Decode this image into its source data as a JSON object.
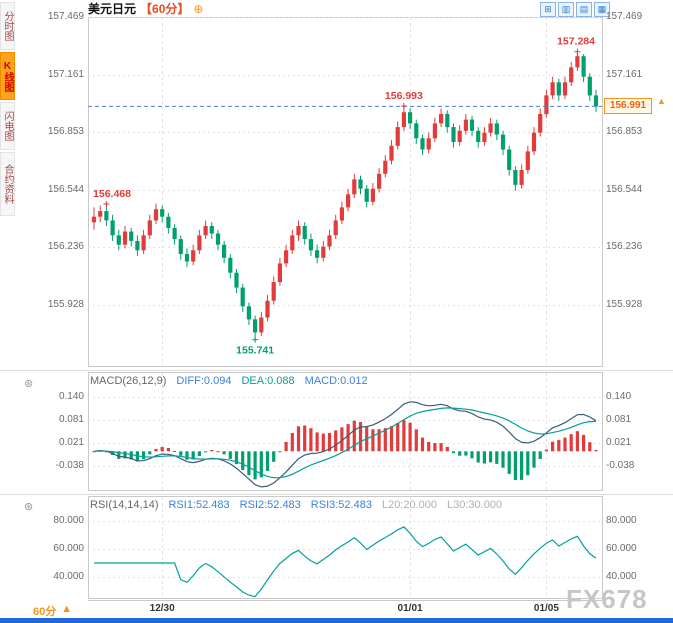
{
  "header": {
    "symbol": "美元日元",
    "period": "【60分】",
    "settings_glyph": "⊕"
  },
  "sidebar": {
    "tabs": [
      {
        "label": "分时图",
        "active": false
      },
      {
        "label": "K线图",
        "active": true
      },
      {
        "label": "闪电图",
        "active": false
      },
      {
        "label": "合约资料",
        "active": false
      }
    ]
  },
  "toolbar": {
    "icons": [
      {
        "name": "compare-icon",
        "glyph": "⊞"
      },
      {
        "name": "grid-layout-icon",
        "glyph": "▥"
      },
      {
        "name": "kline-style-icon",
        "glyph": "▤"
      },
      {
        "name": "indicator-panel-icon",
        "glyph": "▦"
      }
    ]
  },
  "price_tag": {
    "value": "156.991",
    "color": "#f7941d"
  },
  "bottom": {
    "period_label": "60分",
    "arrow": "▲"
  },
  "watermark": "FX678",
  "chart_data": [
    {
      "type": "candlestick",
      "title": "美元日元 60分",
      "y_ticks": [
        "157.469",
        "157.161",
        "156.853",
        "156.544",
        "156.236",
        "155.928"
      ],
      "y_range": [
        155.6,
        157.47
      ],
      "x_ticks": [
        {
          "label": "12/30",
          "index": 11
        },
        {
          "label": "01/01",
          "index": 51
        },
        {
          "label": "01/05",
          "index": 73
        }
      ],
      "annotations": [
        {
          "text": "156.468",
          "index": 2,
          "price": 156.468,
          "placement": "above",
          "color": "#e23b3b"
        },
        {
          "text": "155.741",
          "index": 26,
          "price": 155.741,
          "placement": "below",
          "color": "#00a06c"
        },
        {
          "text": "156.993",
          "index": 50,
          "price": 156.993,
          "placement": "above",
          "color": "#e23b3b"
        },
        {
          "text": "157.284",
          "index": 78,
          "price": 157.284,
          "placement": "above",
          "color": "#e23b3b"
        }
      ],
      "last_price": 156.991,
      "up_color": "#e23b3b",
      "down_color": "#00a06c",
      "candles": [
        [
          156.37,
          156.45,
          156.33,
          156.4
        ],
        [
          156.4,
          156.46,
          156.37,
          156.43
        ],
        [
          156.43,
          156.468,
          156.35,
          156.38
        ],
        [
          156.38,
          156.41,
          156.27,
          156.3
        ],
        [
          156.3,
          156.33,
          156.22,
          156.25
        ],
        [
          156.25,
          156.35,
          156.23,
          156.32
        ],
        [
          156.32,
          156.34,
          156.24,
          156.27
        ],
        [
          156.27,
          156.3,
          156.19,
          156.22
        ],
        [
          156.22,
          156.33,
          156.2,
          156.3
        ],
        [
          156.3,
          156.41,
          156.28,
          156.38
        ],
        [
          156.38,
          156.47,
          156.36,
          156.44
        ],
        [
          156.44,
          156.46,
          156.37,
          156.4
        ],
        [
          156.4,
          156.42,
          156.31,
          156.34
        ],
        [
          156.34,
          156.36,
          156.25,
          156.28
        ],
        [
          156.28,
          156.3,
          156.17,
          156.2
        ],
        [
          156.2,
          156.23,
          156.13,
          156.16
        ],
        [
          156.16,
          156.25,
          156.14,
          156.22
        ],
        [
          156.22,
          156.33,
          156.2,
          156.3
        ],
        [
          156.3,
          156.38,
          156.28,
          156.35
        ],
        [
          156.35,
          156.37,
          156.28,
          156.31
        ],
        [
          156.31,
          156.33,
          156.22,
          156.25
        ],
        [
          156.25,
          156.27,
          156.15,
          156.18
        ],
        [
          156.18,
          156.2,
          156.07,
          156.1
        ],
        [
          156.1,
          156.12,
          155.99,
          156.02
        ],
        [
          156.02,
          156.04,
          155.89,
          155.92
        ],
        [
          155.92,
          155.94,
          155.82,
          155.85
        ],
        [
          155.85,
          155.87,
          155.741,
          155.78
        ],
        [
          155.78,
          155.89,
          155.76,
          155.86
        ],
        [
          155.86,
          155.98,
          155.84,
          155.95
        ],
        [
          155.95,
          156.08,
          155.93,
          156.05
        ],
        [
          156.05,
          156.18,
          156.03,
          156.15
        ],
        [
          156.15,
          156.25,
          156.13,
          156.22
        ],
        [
          156.22,
          156.33,
          156.2,
          156.3
        ],
        [
          156.3,
          156.38,
          156.27,
          156.35
        ],
        [
          156.35,
          156.37,
          156.25,
          156.28
        ],
        [
          156.28,
          156.31,
          156.19,
          156.22
        ],
        [
          156.22,
          156.25,
          156.15,
          156.18
        ],
        [
          156.18,
          156.27,
          156.16,
          156.24
        ],
        [
          156.24,
          156.33,
          156.22,
          156.3
        ],
        [
          156.3,
          156.41,
          156.28,
          156.38
        ],
        [
          156.38,
          156.48,
          156.36,
          156.45
        ],
        [
          156.45,
          156.55,
          156.43,
          156.52
        ],
        [
          156.52,
          156.63,
          156.5,
          156.6
        ],
        [
          156.6,
          156.62,
          156.52,
          156.55
        ],
        [
          156.55,
          156.57,
          156.45,
          156.48
        ],
        [
          156.48,
          156.58,
          156.46,
          156.55
        ],
        [
          156.55,
          156.66,
          156.53,
          156.63
        ],
        [
          156.63,
          156.73,
          156.61,
          156.7
        ],
        [
          156.7,
          156.81,
          156.68,
          156.78
        ],
        [
          156.78,
          156.91,
          156.76,
          156.88
        ],
        [
          156.88,
          156.993,
          156.86,
          156.96
        ],
        [
          156.96,
          156.98,
          156.87,
          156.9
        ],
        [
          156.9,
          156.92,
          156.79,
          156.82
        ],
        [
          156.82,
          156.84,
          156.73,
          156.76
        ],
        [
          156.76,
          156.85,
          156.74,
          156.82
        ],
        [
          156.82,
          156.93,
          156.8,
          156.9
        ],
        [
          156.9,
          156.98,
          156.88,
          156.95
        ],
        [
          156.95,
          156.97,
          156.85,
          156.88
        ],
        [
          156.88,
          156.9,
          156.77,
          156.8
        ],
        [
          156.8,
          156.89,
          156.78,
          156.86
        ],
        [
          156.86,
          156.95,
          156.84,
          156.92
        ],
        [
          156.92,
          156.94,
          156.83,
          156.86
        ],
        [
          156.86,
          156.88,
          156.77,
          156.8
        ],
        [
          156.8,
          156.88,
          156.78,
          156.85
        ],
        [
          156.85,
          156.93,
          156.83,
          156.9
        ],
        [
          156.9,
          156.92,
          156.81,
          156.84
        ],
        [
          156.84,
          156.86,
          156.73,
          156.76
        ],
        [
          156.76,
          156.78,
          156.62,
          156.65
        ],
        [
          156.65,
          156.67,
          156.54,
          156.57
        ],
        [
          156.57,
          156.68,
          156.55,
          156.65
        ],
        [
          156.65,
          156.78,
          156.63,
          156.75
        ],
        [
          156.75,
          156.88,
          156.73,
          156.85
        ],
        [
          156.85,
          156.98,
          156.83,
          156.95
        ],
        [
          156.95,
          157.08,
          156.93,
          157.05
        ],
        [
          157.05,
          157.15,
          157.03,
          157.12
        ],
        [
          157.12,
          157.14,
          157.02,
          157.05
        ],
        [
          157.05,
          157.15,
          157.03,
          157.12
        ],
        [
          157.12,
          157.23,
          157.1,
          157.2
        ],
        [
          157.2,
          157.284,
          157.18,
          157.26
        ],
        [
          157.26,
          157.27,
          157.12,
          157.15
        ],
        [
          157.15,
          157.17,
          157.02,
          157.05
        ],
        [
          157.05,
          157.08,
          156.96,
          156.991
        ]
      ]
    },
    {
      "type": "macd",
      "labels": {
        "params": "MACD(26,12,9)",
        "diff": "DIFF:0.094",
        "dea": "DEA:0.088",
        "macd": "MACD:0.012"
      },
      "y_ticks": [
        "0.140",
        "0.081",
        "0.021",
        "-0.038"
      ],
      "params": [
        26,
        12,
        9
      ],
      "diff_color": "#3b5a7a",
      "dea_color": "#00a0a0"
    },
    {
      "type": "rsi",
      "labels": {
        "params": "RSI(14,14,14)",
        "rsi1": "RSI1:52.483",
        "rsi2": "RSI2:52.483",
        "rsi3": "RSI3:52.483",
        "l20": "L20:20.000",
        "l30": "L30:30.000"
      },
      "y_ticks": [
        "80.000",
        "60.000",
        "40.000"
      ],
      "period": 14,
      "line_color": "#00a0a0"
    }
  ]
}
